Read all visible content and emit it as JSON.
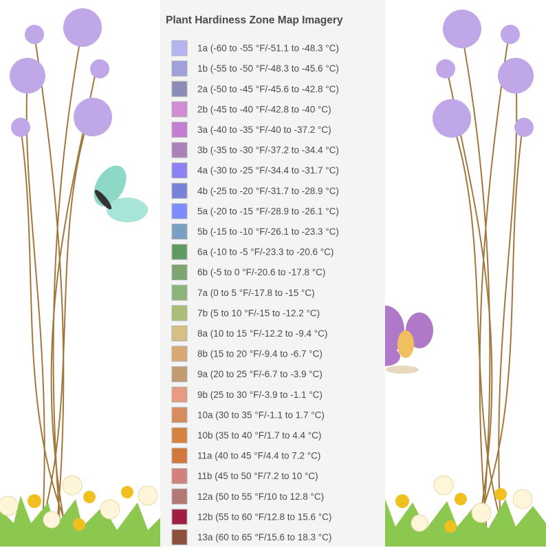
{
  "legend": {
    "title": "Plant Hardiness Zone Map Imagery",
    "items": [
      {
        "label": "1a (-60 to -55 °F/-51.1 to -48.3 °C)",
        "color": "#b4b4f0"
      },
      {
        "label": "1b (-55 to -50 °F/-48.3 to -45.6 °C)",
        "color": "#a0a0dc"
      },
      {
        "label": "2a (-50 to -45 °F/-45.6 to -42.8 °C)",
        "color": "#8c8cb9"
      },
      {
        "label": "2b (-45 to -40 °F/-42.8 to -40 °C)",
        "color": "#d28cd2"
      },
      {
        "label": "3a (-40 to -35 °F/-40 to -37.2 °C)",
        "color": "#c37dd2"
      },
      {
        "label": "3b (-35 to -30 °F/-37.2 to -34.4 °C)",
        "color": "#aa82b9"
      },
      {
        "label": "4a (-30 to -25 °F/-34.4 to -31.7 °C)",
        "color": "#8c82f5"
      },
      {
        "label": "4b (-25 to -20 °F/-31.7 to -28.9 °C)",
        "color": "#7882d7"
      },
      {
        "label": "5a (-20 to -15 °F/-28.9 to -26.1 °C)",
        "color": "#7d8cff"
      },
      {
        "label": "5b (-15 to -10 °F/-26.1 to -23.3 °C)",
        "color": "#78a0c3"
      },
      {
        "label": "6a (-10 to -5 °F/-23.3 to -20.6 °C)",
        "color": "#5f9b5f"
      },
      {
        "label": "6b (-5 to 0 °F/-20.6 to -17.8 °C)",
        "color": "#7da56e"
      },
      {
        "label": "7a (0 to 5 °F/-17.8 to -15 °C)",
        "color": "#8cb478"
      },
      {
        "label": "7b (5 to 10 °F/-15 to -12.2 °C)",
        "color": "#aabe78"
      },
      {
        "label": "8a (10 to 15 °F/-12.2 to -9.4 °C)",
        "color": "#d7be82"
      },
      {
        "label": "8b (15 to 20 °F/-9.4 to -6.7 °C)",
        "color": "#d7aa73"
      },
      {
        "label": "9a (20 to 25 °F/-6.7 to -3.9 °C)",
        "color": "#c39b73"
      },
      {
        "label": "9b (25 to 30 °F/-3.9 to -1.1 °C)",
        "color": "#e69b82"
      },
      {
        "label": "10a (30 to 35 °F/-1.1 to 1.7 °C)",
        "color": "#d78c5f"
      },
      {
        "label": "10b (35 to 40 °F/1.7 to 4.4 °C)",
        "color": "#d7823c"
      },
      {
        "label": "11a (40 to 45 °F/4.4 to 7.2 °C)",
        "color": "#d2783c"
      },
      {
        "label": "11b (45 to 50 °F/7.2 to 10 °C)",
        "color": "#d2827d"
      },
      {
        "label": "12a (50 to 55 °F/10 to 12.8 °C)",
        "color": "#b47873"
      },
      {
        "label": "12b (55 to 60 °F/12.8 to 15.6 °C)",
        "color": "#a01e41"
      },
      {
        "label": "13a (60 to 65 °F/15.6 to 18.3 °C)",
        "color": "#8c503c"
      }
    ]
  }
}
